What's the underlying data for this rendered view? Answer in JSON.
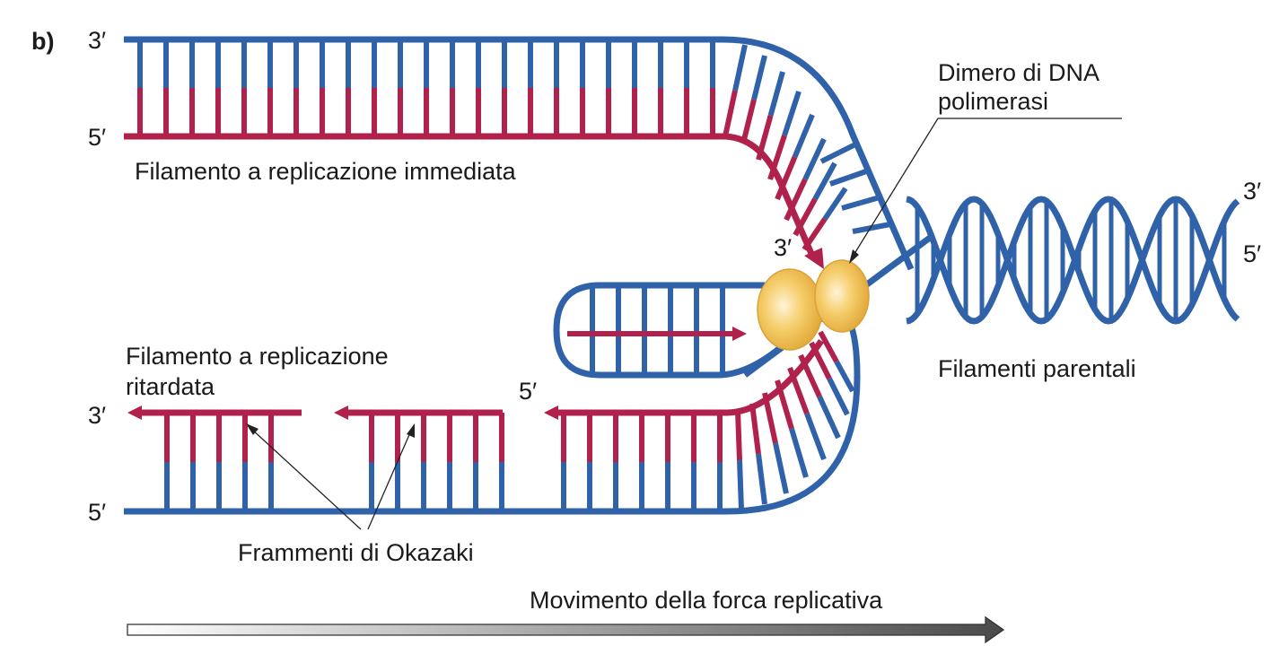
{
  "panel_label": "b)",
  "colors": {
    "parental": "#2f62a8",
    "new": "#b0224b",
    "enzyme": "#f2c14e",
    "arrow_dark": "#555555"
  },
  "labels": {
    "top_3": "3′",
    "top_5": "5′",
    "leading_strand": "Filamento a replicazione immediata",
    "polymerase_line1": "Dimero di DNA",
    "polymerase_line2": "polimerasi",
    "leading_3": "3′",
    "right_3": "3′",
    "right_5": "5′",
    "parental_strands": "Filamenti parentali",
    "lagging_line1": "Filamento a replicazione",
    "lagging_line2": "ritardata",
    "lagging_3": "3′",
    "lagging_5_mid": "5′",
    "bottom_5": "5′",
    "okazaki": "Frammenti di Okazaki",
    "fork_movement": "Movimento della forca replicativa"
  }
}
